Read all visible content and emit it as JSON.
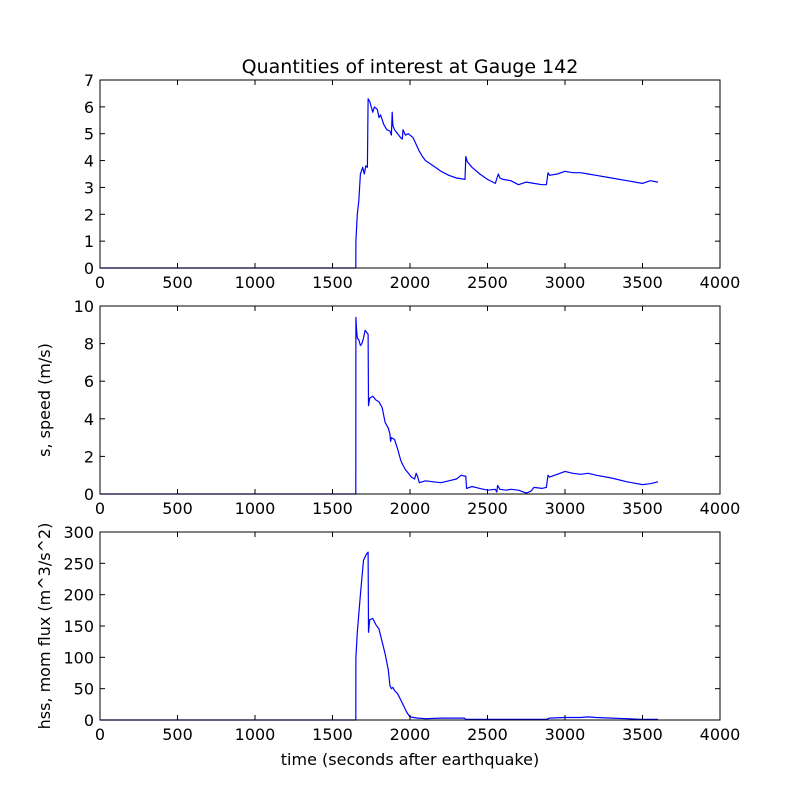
{
  "figure_title": "Quantities of interest at Gauge 142",
  "colors": {
    "line": "#0000ff",
    "frame": "#000000",
    "background": "#ffffff"
  },
  "chart_data": [
    {
      "type": "line",
      "title": "Quantities of interest at Gauge 142",
      "xlabel": "",
      "ylabel": "",
      "xlim": [
        0,
        4000
      ],
      "ylim": [
        0,
        7
      ],
      "xticks": [
        "0",
        "500",
        "1000",
        "1500",
        "2000",
        "2500",
        "3000",
        "3500",
        "4000"
      ],
      "yticks": [
        "0",
        "1",
        "2",
        "3",
        "4",
        "5",
        "6",
        "7"
      ],
      "grid": false,
      "series": [
        {
          "x": [
            0,
            1650,
            1651,
            1660,
            1670,
            1680,
            1695,
            1705,
            1715,
            1725,
            1730,
            1735,
            1740,
            1760,
            1770,
            1780,
            1790,
            1800,
            1810,
            1830,
            1850,
            1870,
            1880,
            1885,
            1890,
            1900,
            1920,
            1940,
            1950,
            1955,
            1970,
            1990,
            2000,
            2020,
            2040,
            2060,
            2080,
            2100,
            2150,
            2200,
            2250,
            2300,
            2355,
            2360,
            2370,
            2400,
            2450,
            2500,
            2550,
            2570,
            2580,
            2600,
            2650,
            2700,
            2750,
            2800,
            2850,
            2880,
            2890,
            2900,
            2950,
            3000,
            3050,
            3100,
            3150,
            3200,
            3300,
            3400,
            3500,
            3550,
            3600
          ],
          "y": [
            0,
            0,
            1.0,
            2.0,
            2.5,
            3.5,
            3.75,
            3.5,
            3.8,
            3.75,
            6.3,
            6.25,
            6.2,
            5.8,
            6.0,
            5.95,
            5.9,
            5.6,
            5.7,
            5.35,
            5.15,
            5.1,
            4.95,
            5.8,
            5.3,
            5.15,
            5.0,
            4.85,
            4.8,
            5.15,
            4.95,
            5.0,
            4.95,
            4.85,
            4.6,
            4.35,
            4.15,
            4.0,
            3.8,
            3.6,
            3.45,
            3.35,
            3.3,
            4.15,
            3.95,
            3.75,
            3.5,
            3.3,
            3.15,
            3.5,
            3.35,
            3.3,
            3.25,
            3.1,
            3.2,
            3.15,
            3.1,
            3.1,
            3.55,
            3.45,
            3.5,
            3.6,
            3.55,
            3.55,
            3.5,
            3.45,
            3.35,
            3.25,
            3.15,
            3.25,
            3.2
          ]
        }
      ]
    },
    {
      "type": "line",
      "title": "",
      "xlabel": "",
      "ylabel": "s, speed (m/s)",
      "xlim": [
        0,
        4000
      ],
      "ylim": [
        0,
        10
      ],
      "xticks": [
        "0",
        "500",
        "1000",
        "1500",
        "2000",
        "2500",
        "3000",
        "3500",
        "4000"
      ],
      "yticks": [
        "0",
        "2",
        "4",
        "6",
        "8",
        "10"
      ],
      "grid": false,
      "series": [
        {
          "x": [
            0,
            1650,
            1651,
            1655,
            1660,
            1670,
            1680,
            1690,
            1700,
            1710,
            1720,
            1730,
            1732,
            1740,
            1760,
            1780,
            1800,
            1820,
            1840,
            1860,
            1870,
            1875,
            1880,
            1900,
            1920,
            1940,
            1950,
            1970,
            1990,
            2000,
            2010,
            2030,
            2040,
            2050,
            2060,
            2100,
            2150,
            2200,
            2250,
            2300,
            2330,
            2350,
            2360,
            2365,
            2400,
            2450,
            2500,
            2550,
            2560,
            2565,
            2580,
            2620,
            2650,
            2700,
            2750,
            2780,
            2800,
            2850,
            2880,
            2890,
            2900,
            2950,
            3000,
            3050,
            3100,
            3150,
            3200,
            3300,
            3400,
            3500,
            3550,
            3600
          ],
          "y": [
            0,
            0,
            9.4,
            8.8,
            8.3,
            8.2,
            7.9,
            8.0,
            8.3,
            8.7,
            8.6,
            8.5,
            4.7,
            5.1,
            5.2,
            5.0,
            4.9,
            4.6,
            3.8,
            3.5,
            3.2,
            2.8,
            3.0,
            2.9,
            2.4,
            1.8,
            1.6,
            1.3,
            1.1,
            1.0,
            0.9,
            0.8,
            1.1,
            0.9,
            0.6,
            0.7,
            0.65,
            0.6,
            0.7,
            0.8,
            1.0,
            0.95,
            0.95,
            0.3,
            0.4,
            0.3,
            0.2,
            0.25,
            0.1,
            0.45,
            0.25,
            0.2,
            0.25,
            0.2,
            0.05,
            0.15,
            0.35,
            0.3,
            0.35,
            1.0,
            0.9,
            1.05,
            1.2,
            1.1,
            1.05,
            1.1,
            1.0,
            0.85,
            0.65,
            0.5,
            0.55,
            0.65
          ]
        }
      ]
    },
    {
      "type": "line",
      "title": "",
      "xlabel": "time (seconds after earthquake)",
      "ylabel": "hss, mom flux (m^3/s^2)",
      "xlim": [
        0,
        4000
      ],
      "ylim": [
        0,
        300
      ],
      "xticks": [
        "0",
        "500",
        "1000",
        "1500",
        "2000",
        "2500",
        "3000",
        "3500",
        "4000"
      ],
      "yticks": [
        "0",
        "50",
        "100",
        "150",
        "200",
        "250",
        "300"
      ],
      "grid": false,
      "series": [
        {
          "x": [
            0,
            1650,
            1651,
            1660,
            1680,
            1700,
            1720,
            1730,
            1732,
            1740,
            1760,
            1780,
            1800,
            1820,
            1840,
            1860,
            1870,
            1880,
            1890,
            1900,
            1920,
            1940,
            1960,
            1980,
            2000,
            2050,
            2100,
            2200,
            2300,
            2350,
            2360,
            2400,
            2500,
            2600,
            2800,
            2880,
            2900,
            3000,
            3100,
            3150,
            3200,
            3300,
            3400,
            3500,
            3600
          ],
          "y": [
            0,
            0,
            100,
            140,
            200,
            255,
            265,
            268,
            140,
            160,
            162,
            152,
            145,
            125,
            105,
            80,
            55,
            50,
            52,
            47,
            42,
            32,
            22,
            12,
            5,
            3,
            2,
            3,
            3,
            3,
            1,
            1,
            1,
            1,
            1,
            1,
            3,
            4,
            4,
            5,
            4,
            3,
            2,
            1,
            1
          ]
        }
      ]
    }
  ]
}
